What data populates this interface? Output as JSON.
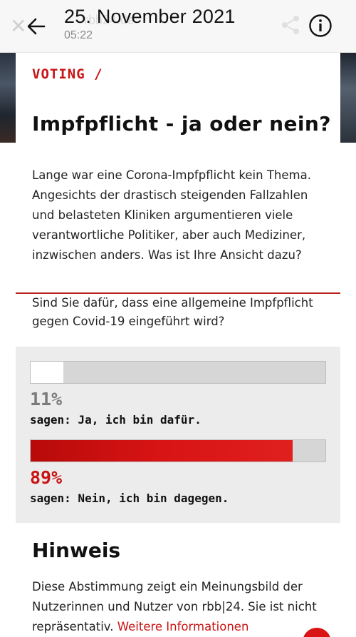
{
  "header": {
    "title": "25. November 2021",
    "time": "05:22",
    "ghost_url": "rbb24.de"
  },
  "icons": {
    "close": "close-icon",
    "back": "arrow-left-icon",
    "share": "share-icon",
    "info": "info-icon"
  },
  "article": {
    "kicker": "VOTING /",
    "headline": "Impfpflicht - ja oder nein?",
    "intro": "Lange war eine Corona-Impfpflicht kein Thema. Angesichts der drastisch steigenden Fallzahlen und belasteten Kliniken argumentieren viele verantwortliche Politiker, aber auch Mediziner, inzwischen anders. Was ist Ihre Ansicht dazu?"
  },
  "poll": {
    "question": " Sind Sie dafür, dass eine allgemeine Impfpflicht gegen Covid-19 eingeführt wird?",
    "options": [
      {
        "percent_label": "11%",
        "percent": 11,
        "answer": "sagen: Ja, ich bin dafür."
      },
      {
        "percent_label": "89%",
        "percent": 89,
        "answer": "sagen: Nein, ich bin dagegen."
      }
    ]
  },
  "hint": {
    "title": "Hinweis",
    "text": "Diese Abstimmung zeigt ein Meinungsbild der Nutzerinnen und Nutzer von rbb|24. Sie ist nicht repräsentativ. ",
    "link": "Weitere Informationen"
  },
  "colors": {
    "accent": "#c81414",
    "poll_bg": "#ececec"
  }
}
